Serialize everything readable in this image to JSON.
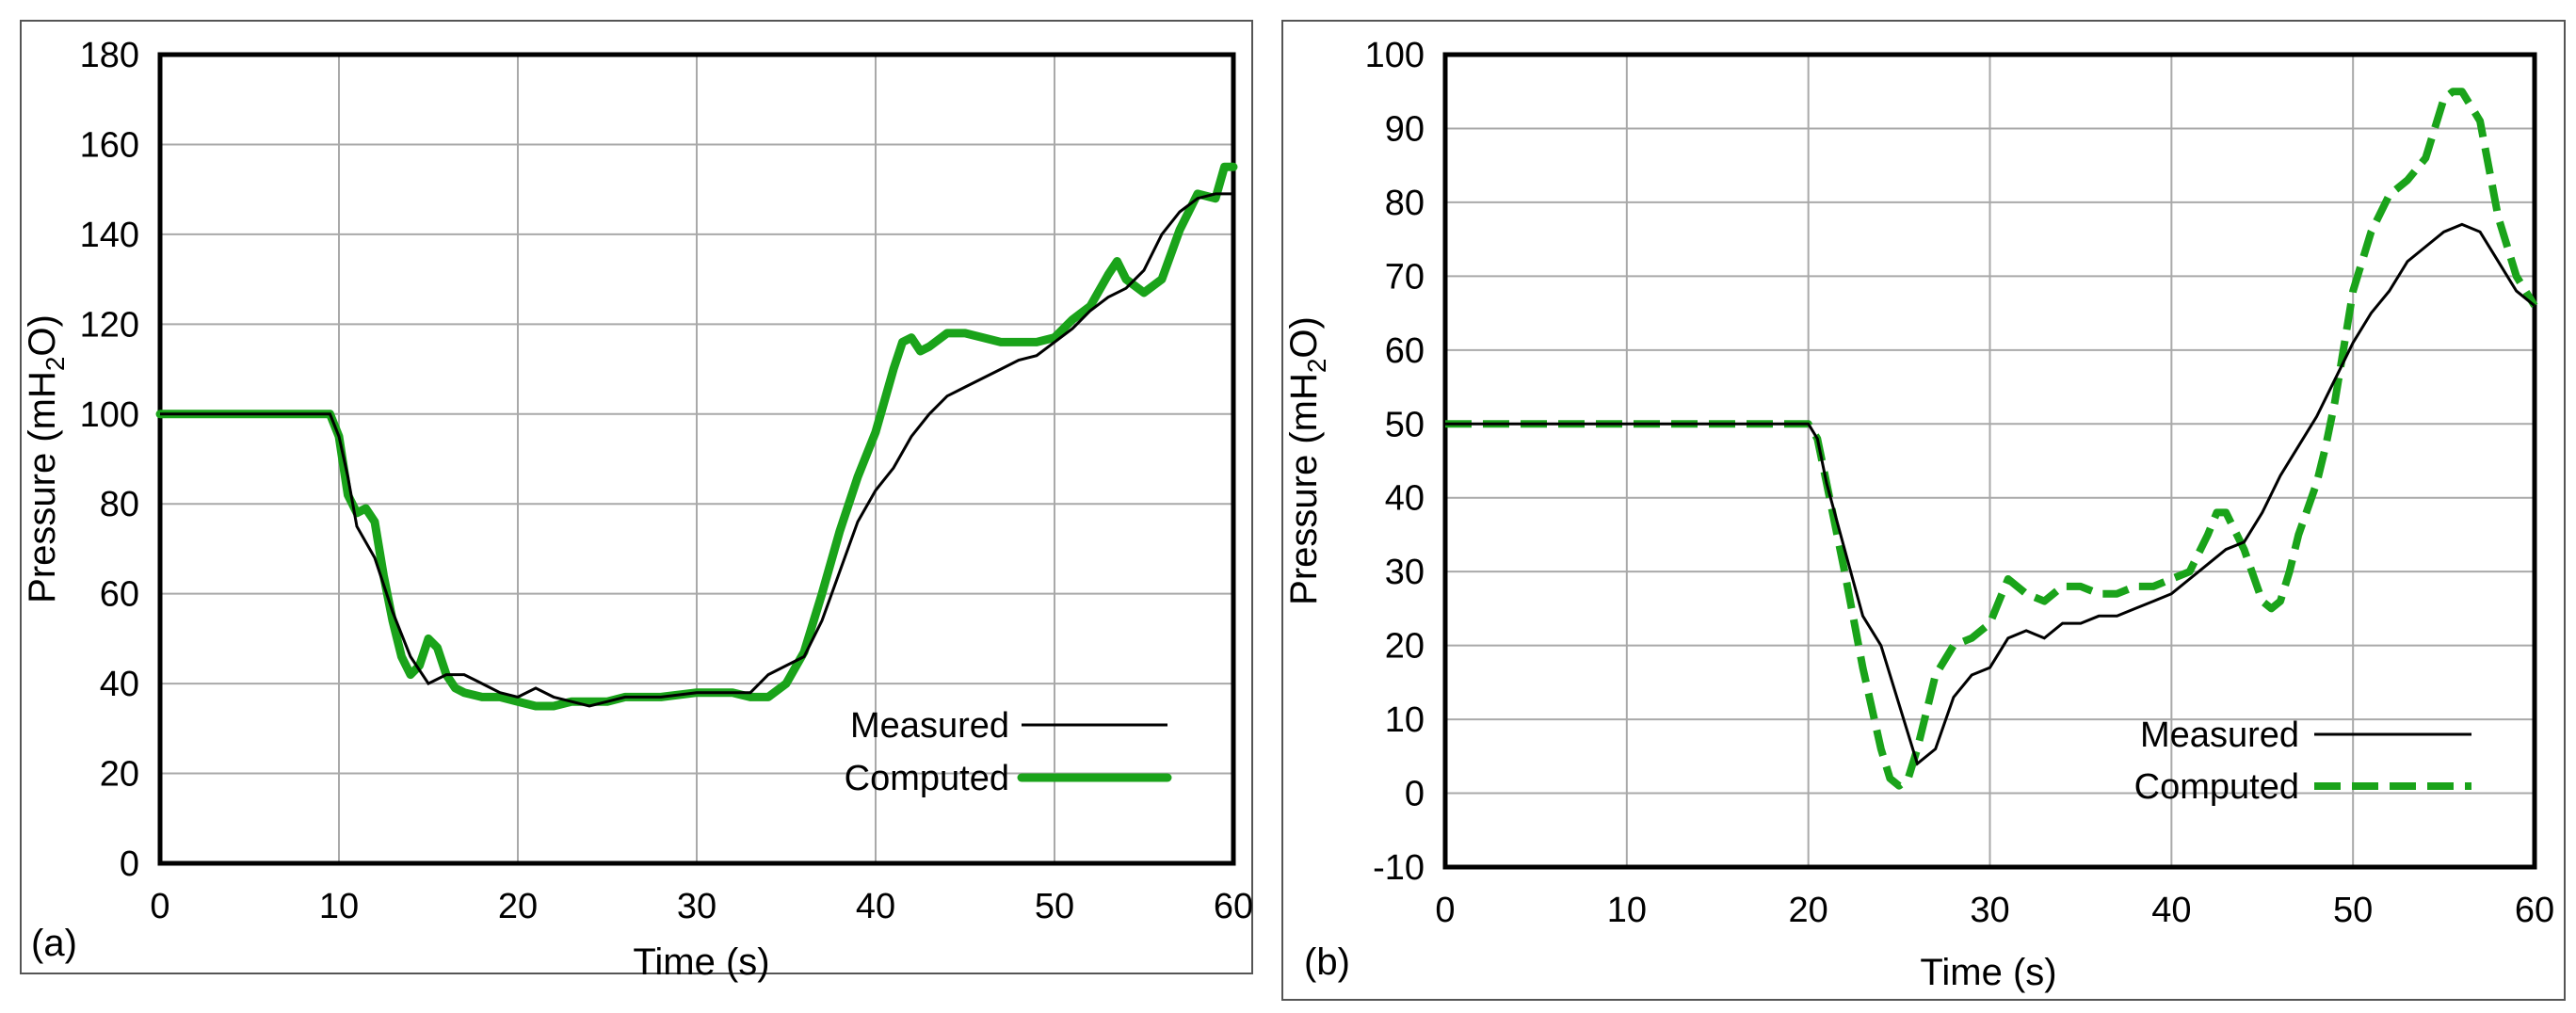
{
  "chart_data": [
    {
      "type": "line",
      "panel_label": "(a)",
      "xlabel": "Time (s)",
      "ylabel_main": "Pressure (mH",
      "ylabel_sub": "2",
      "ylabel_end": "O)",
      "xlim": [
        0,
        60
      ],
      "ylim": [
        0,
        180
      ],
      "xticks": [
        0,
        10,
        20,
        30,
        40,
        50,
        60
      ],
      "yticks": [
        0,
        20,
        40,
        60,
        80,
        100,
        120,
        140,
        160,
        180
      ],
      "grid": true,
      "legend_position": "bottom-right",
      "series": [
        {
          "name": "Measured",
          "color": "#000000",
          "style": "solid",
          "x": [
            0,
            9.5,
            10,
            10.5,
            11,
            12,
            13,
            14,
            15,
            16,
            17,
            18,
            19,
            20,
            21,
            22,
            23,
            24,
            25,
            26,
            28,
            30,
            32,
            33,
            34,
            35,
            36,
            37,
            38,
            39,
            40,
            41,
            42,
            43,
            44,
            45,
            46,
            47,
            48,
            49,
            50,
            51,
            52,
            53,
            54,
            55,
            56,
            57,
            58,
            59,
            60
          ],
          "y": [
            100,
            100,
            95,
            86,
            75,
            68,
            56,
            46,
            40,
            42,
            42,
            40,
            38,
            37,
            39,
            37,
            36,
            35,
            36,
            37,
            37,
            38,
            38,
            38,
            42,
            44,
            46,
            54,
            65,
            76,
            83,
            88,
            95,
            100,
            104,
            106,
            108,
            110,
            112,
            113,
            116,
            119,
            123,
            126,
            128,
            132,
            140,
            145,
            148,
            149,
            149
          ]
        },
        {
          "name": "Computed",
          "color": "#1aa31a",
          "style": "solid-thick",
          "x": [
            0,
            9.5,
            10,
            10.5,
            11,
            11.5,
            12,
            12.5,
            13,
            13.5,
            14,
            14.5,
            15,
            15.5,
            16,
            16.5,
            17,
            18,
            19,
            20,
            21,
            22,
            23,
            24,
            25,
            26,
            28,
            30,
            32,
            33,
            34,
            35,
            36,
            37,
            38,
            39,
            40,
            41,
            41.5,
            42,
            42.5,
            43,
            44,
            45,
            46,
            47,
            48,
            49,
            50,
            51,
            52,
            53,
            53.5,
            54,
            55,
            56,
            57,
            58,
            59,
            59.5,
            60
          ],
          "y": [
            100,
            100,
            95,
            82,
            78,
            79,
            76,
            64,
            54,
            46,
            42,
            44,
            50,
            48,
            42,
            39,
            38,
            37,
            37,
            36,
            35,
            35,
            36,
            36,
            36,
            37,
            37,
            38,
            38,
            37,
            37,
            40,
            47,
            60,
            74,
            86,
            96,
            110,
            116,
            117,
            114,
            115,
            118,
            118,
            117,
            116,
            116,
            116,
            117,
            121,
            124,
            131,
            134,
            130,
            127,
            130,
            141,
            149,
            148,
            155,
            155
          ]
        }
      ]
    },
    {
      "type": "line",
      "panel_label": "(b)",
      "xlabel": "Time (s)",
      "ylabel_main": "Pressure (mH",
      "ylabel_sub": "2",
      "ylabel_end": "O)",
      "xlim": [
        0,
        60
      ],
      "ylim": [
        -10,
        100
      ],
      "xticks": [
        0,
        10,
        20,
        30,
        40,
        50,
        60
      ],
      "yticks": [
        -10,
        0,
        10,
        20,
        30,
        40,
        50,
        60,
        70,
        80,
        90,
        100
      ],
      "grid": true,
      "legend_position": "bottom-right",
      "series": [
        {
          "name": "Measured",
          "color": "#000000",
          "style": "solid",
          "x": [
            0,
            20,
            20.5,
            21,
            22,
            23,
            24,
            25,
            26,
            27,
            28,
            29,
            30,
            31,
            32,
            33,
            34,
            35,
            36,
            37,
            38,
            39,
            40,
            41,
            42,
            43,
            44,
            45,
            46,
            47,
            48,
            49,
            50,
            51,
            52,
            53,
            54,
            55,
            56,
            57,
            58,
            59,
            60
          ],
          "y": [
            50,
            50,
            48,
            42,
            33,
            24,
            20,
            12,
            4,
            6,
            13,
            16,
            17,
            21,
            22,
            21,
            23,
            23,
            24,
            24,
            25,
            26,
            27,
            29,
            31,
            33,
            34,
            38,
            43,
            47,
            51,
            56,
            61,
            65,
            68,
            72,
            74,
            76,
            77,
            76,
            72,
            68,
            66
          ]
        },
        {
          "name": "Computed",
          "color": "#1aa31a",
          "style": "dashed",
          "x": [
            0,
            20,
            20.5,
            21,
            22,
            23,
            24,
            24.5,
            25,
            25.5,
            26,
            27,
            28,
            29,
            30,
            30.5,
            31,
            32,
            33,
            34,
            35,
            36,
            37,
            38,
            39,
            40,
            41,
            42,
            42.5,
            43,
            44,
            45,
            45.5,
            46,
            46.5,
            47,
            48,
            48.5,
            49,
            50,
            51,
            52,
            53,
            54,
            55,
            55.5,
            56,
            57,
            58,
            59,
            60
          ],
          "y": [
            50,
            50,
            48,
            42,
            30,
            17,
            6,
            2,
            1,
            2,
            6,
            16,
            20,
            21,
            23,
            26,
            29,
            27,
            26,
            28,
            28,
            27,
            27,
            28,
            28,
            29,
            30,
            35,
            38,
            38,
            33,
            26,
            25,
            26,
            30,
            35,
            42,
            47,
            53,
            68,
            76,
            81,
            83,
            86,
            94,
            95,
            95,
            91,
            78,
            70,
            66
          ]
        }
      ]
    }
  ]
}
